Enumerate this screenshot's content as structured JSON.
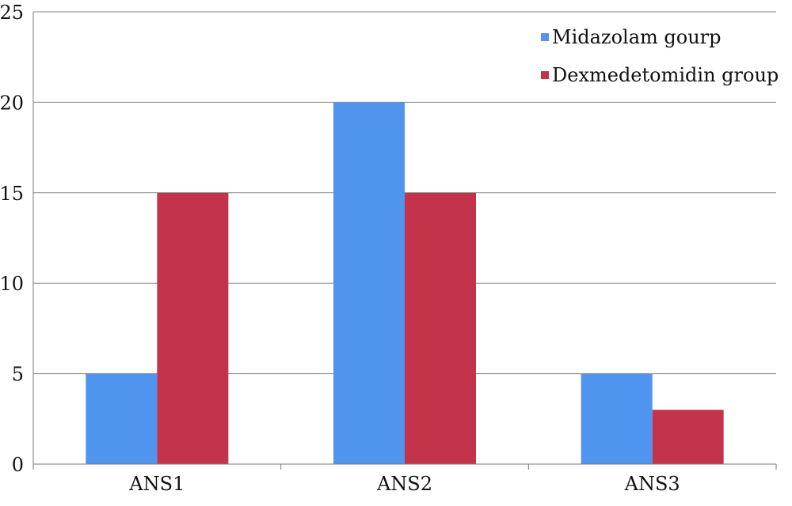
{
  "chart_data": {
    "type": "bar",
    "categories": [
      "ANS1",
      "ANS2",
      "ANS3"
    ],
    "series": [
      {
        "name": "Midazolam gourp",
        "values": [
          5,
          20,
          5
        ],
        "color": "#4f94ef"
      },
      {
        "name": "Dexmedetomidin group",
        "values": [
          15,
          15,
          3
        ],
        "color": "#c3344a"
      }
    ],
    "title": "",
    "xlabel": "",
    "ylabel": "",
    "ylim": [
      0,
      25
    ],
    "yticks": [
      0,
      5,
      10,
      15,
      20,
      25
    ],
    "grid": true,
    "legend_position": "top-right"
  }
}
